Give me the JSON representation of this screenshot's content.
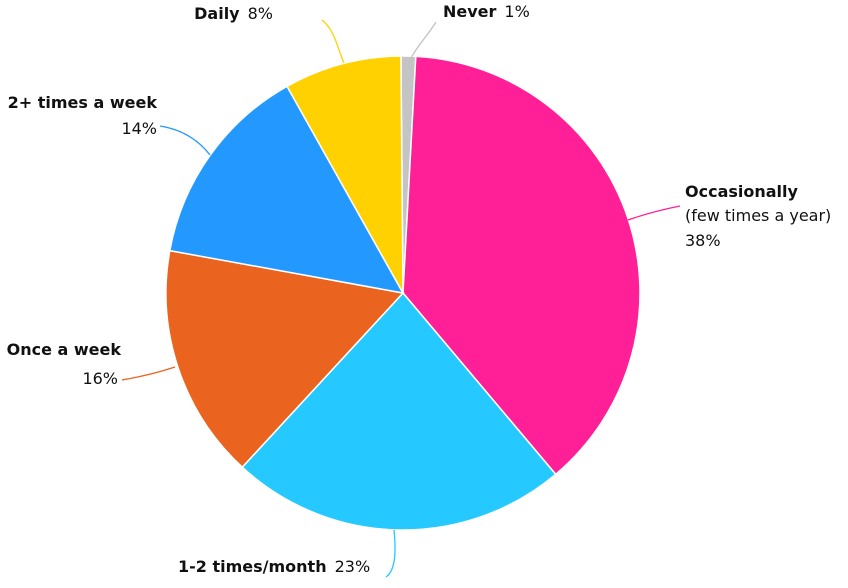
{
  "chart_data": {
    "type": "pie",
    "categories": [
      "Never",
      "Occasionally",
      "1-2 times/month",
      "Once a week",
      "2+ times a week",
      "Daily"
    ],
    "category_notes": [
      null,
      "(few times a year)",
      null,
      null,
      null,
      null
    ],
    "values": [
      1,
      38,
      23,
      16,
      14,
      8
    ],
    "value_labels": [
      "1%",
      "38%",
      "23%",
      "16%",
      "14%",
      "8%"
    ],
    "colors": [
      "#c4c4c4",
      "#ff1f96",
      "#25c8ff",
      "#ea6420",
      "#2399ff",
      "#ffd100"
    ]
  }
}
